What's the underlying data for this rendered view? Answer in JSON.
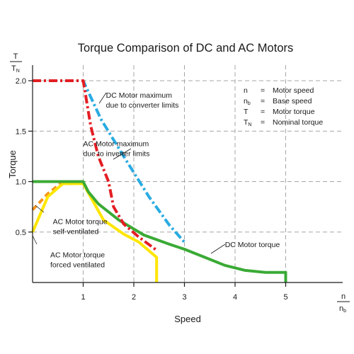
{
  "chart_data": {
    "type": "line",
    "title": "Torque Comparison of DC and AC Motors",
    "xlabel": "Speed",
    "ylabel": "Torque",
    "x_axis_unit": {
      "num": "n",
      "den": "n",
      "den_sub": "b"
    },
    "y_axis_unit": {
      "num": "T",
      "den": "T",
      "den_sub": "N"
    },
    "xlim": [
      0,
      5.6
    ],
    "ylim": [
      0,
      2.2
    ],
    "x_ticks": [
      "1",
      "2",
      "3",
      "4",
      "5"
    ],
    "y_ticks": [
      "0.5",
      "1.0",
      "1.5",
      "2.0"
    ],
    "grid": true,
    "legend": [
      {
        "sym": "n",
        "sub": "",
        "eq": "=",
        "desc": "Motor speed"
      },
      {
        "sym": "n",
        "sub": "b",
        "eq": "=",
        "desc": "Base speed"
      },
      {
        "sym": "T",
        "sub": "",
        "eq": "=",
        "desc": "Motor torque"
      },
      {
        "sym": "T",
        "sub": "N",
        "eq": "=",
        "desc": "Nominal torque"
      }
    ],
    "legend_position": "top-right",
    "series": [
      {
        "name": "DC Motor maximum due to converter limits",
        "color": "#29abe2",
        "dash": "dash-dot",
        "points": [
          [
            0,
            2.0
          ],
          [
            1.0,
            2.0
          ],
          [
            1.35,
            1.62
          ],
          [
            1.8,
            1.25
          ],
          [
            2.3,
            0.85
          ],
          [
            2.7,
            0.57
          ],
          [
            3.0,
            0.4
          ]
        ]
      },
      {
        "name": "AC Motor maximum due to inverter limits",
        "color": "#e31e24",
        "dash": "dash-dot",
        "points": [
          [
            0,
            2.0
          ],
          [
            1.0,
            2.0
          ],
          [
            1.15,
            1.55
          ],
          [
            1.3,
            1.25
          ],
          [
            1.5,
            1.0
          ],
          [
            1.6,
            0.75
          ],
          [
            1.8,
            0.58
          ],
          [
            2.1,
            0.45
          ],
          [
            2.45,
            0.32
          ]
        ]
      },
      {
        "name": "DC Motor torque",
        "color": "#3aaa35",
        "dash": "solid",
        "points": [
          [
            0,
            1.0
          ],
          [
            1.0,
            1.0
          ],
          [
            1.1,
            0.9
          ],
          [
            1.3,
            0.78
          ],
          [
            1.7,
            0.62
          ],
          [
            2.2,
            0.47
          ],
          [
            2.7,
            0.38
          ],
          [
            3.0,
            0.33
          ],
          [
            3.4,
            0.25
          ],
          [
            3.8,
            0.17
          ],
          [
            4.2,
            0.12
          ],
          [
            4.6,
            0.1
          ],
          [
            5.0,
            0.1
          ],
          [
            5.0,
            0.0
          ]
        ]
      },
      {
        "name": "AC Motor torque forced ventilated",
        "color": "#ffe600",
        "dash": "solid",
        "points": [
          [
            0,
            0.5
          ],
          [
            0.3,
            0.85
          ],
          [
            0.6,
            0.98
          ],
          [
            1.0,
            0.98
          ],
          [
            1.4,
            0.62
          ],
          [
            1.8,
            0.48
          ],
          [
            2.1,
            0.4
          ],
          [
            2.45,
            0.25
          ],
          [
            2.45,
            0.0
          ]
        ]
      },
      {
        "name": "AC Motor torque self-ventilated",
        "color": "#f7941d",
        "dash": "dash",
        "points": [
          [
            0,
            0.72
          ],
          [
            0.3,
            0.88
          ],
          [
            0.55,
            0.98
          ],
          [
            0.8,
            0.98
          ]
        ]
      }
    ],
    "annotations": [
      {
        "lines": [
          "DC Motor maximum",
          "due to converter limits"
        ],
        "at": [
          1.45,
          1.83
        ]
      },
      {
        "lines": [
          "AC Motor maximum",
          "due to inverter limits"
        ],
        "at": [
          1.0,
          1.35
        ]
      },
      {
        "lines": [
          "AC Motor torque",
          "self-ventilated"
        ],
        "at": [
          0.4,
          0.58
        ]
      },
      {
        "lines": [
          "AC Motor torque",
          "forced ventilated"
        ],
        "at": [
          0.35,
          0.25
        ]
      },
      {
        "lines": [
          "DC Motor torque"
        ],
        "at": [
          3.8,
          0.35
        ]
      }
    ]
  }
}
